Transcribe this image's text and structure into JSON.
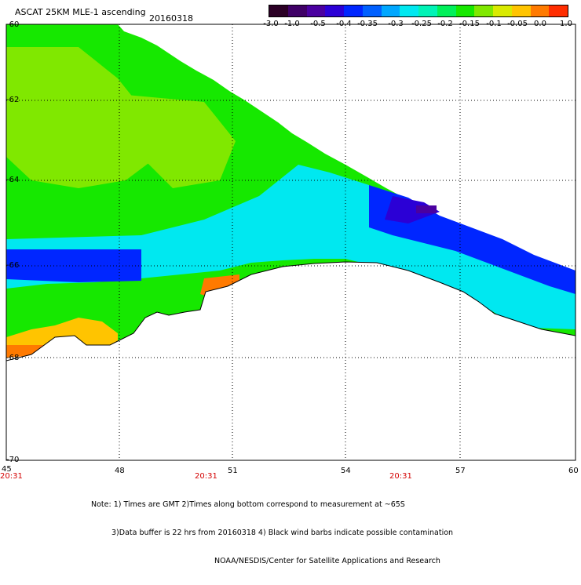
{
  "title": {
    "product": "ASCAT 25KM MLE-1 ascending",
    "date": "20160318"
  },
  "colorbar": {
    "labels": [
      "-3.0",
      "-1.0",
      "-0.5",
      "-0.4",
      "-0.35",
      "-0.3",
      "-0.25",
      "-0.2",
      "-0.15",
      "-0.1",
      "-0.05",
      "0.0",
      "1.0"
    ],
    "colors": [
      "#2b0025",
      "#3f0066",
      "#4a00a0",
      "#2b00d6",
      "#0026ff",
      "#0060ff",
      "#00a7ff",
      "#00e8f0",
      "#00f3b6",
      "#00f05a",
      "#16e800",
      "#80e800",
      "#d9ea00",
      "#ffc400",
      "#ff7a00",
      "#ff2d00"
    ]
  },
  "axes": {
    "x_ticks": [
      "45",
      "48",
      "51",
      "54",
      "57",
      "60"
    ],
    "y_ticks": [
      "-60",
      "-62",
      "-64",
      "-66",
      "-68",
      "-70"
    ]
  },
  "times": [
    "20:31",
    "20:31",
    "20:31"
  ],
  "note": {
    "line1": "Note: 1) Times are GMT 2)Times along bottom correspond to measurement at ~65S",
    "line2": "3)Data buffer is 22 hrs from 20160318 4) Black wind barbs indicate possible contamination",
    "line3": "NOAA/NESDIS/Center for Satellite Applications and Research"
  },
  "map_region": {
    "lon_range": [
      45,
      60
    ],
    "lat_range": [
      -70,
      -60
    ]
  },
  "data_colors": {
    "green": "#16e800",
    "lime": "#80e800",
    "cyan": "#00e8f0",
    "blue": "#0026ff",
    "deepblue": "#2b00d6",
    "purple": "#4a00a0",
    "orange": "#ff7a00",
    "yellow": "#ffc400"
  }
}
